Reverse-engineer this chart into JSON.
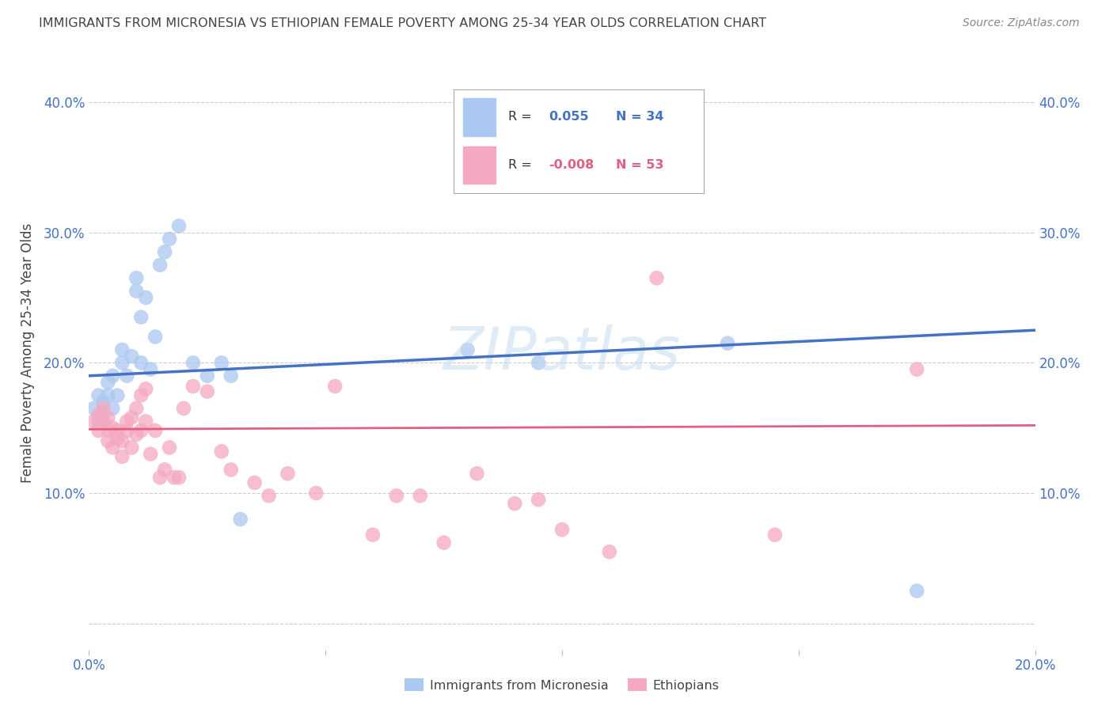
{
  "title": "IMMIGRANTS FROM MICRONESIA VS ETHIOPIAN FEMALE POVERTY AMONG 25-34 YEAR OLDS CORRELATION CHART",
  "source": "Source: ZipAtlas.com",
  "ylabel": "Female Poverty Among 25-34 Year Olds",
  "xlim": [
    0.0,
    0.2
  ],
  "ylim": [
    -0.02,
    0.435
  ],
  "yticks": [
    0.0,
    0.1,
    0.2,
    0.3,
    0.4
  ],
  "ytick_labels_left": [
    "",
    "10.0%",
    "20.0%",
    "30.0%",
    "40.0%"
  ],
  "ytick_labels_right": [
    "",
    "10.0%",
    "20.0%",
    "30.0%",
    "40.0%"
  ],
  "xticks": [
    0.0,
    0.05,
    0.1,
    0.15,
    0.2
  ],
  "xtick_labels": [
    "0.0%",
    "",
    "",
    "",
    "20.0%"
  ],
  "background_color": "#ffffff",
  "grid_color": "#cccccc",
  "series1_color": "#aac8f0",
  "series2_color": "#f5a8c0",
  "line1_color": "#4472c4",
  "line2_color": "#e06080",
  "title_color": "#444444",
  "axis_color": "#4472c4",
  "series1_name": "Immigrants from Micronesia",
  "series2_name": "Ethiopians",
  "legend_r1": "0.055",
  "legend_n1": "34",
  "legend_r2": "-0.008",
  "legend_n2": "53",
  "micronesia_x": [
    0.001,
    0.002,
    0.002,
    0.003,
    0.003,
    0.004,
    0.004,
    0.005,
    0.005,
    0.006,
    0.007,
    0.007,
    0.008,
    0.009,
    0.01,
    0.01,
    0.011,
    0.011,
    0.012,
    0.013,
    0.014,
    0.015,
    0.016,
    0.017,
    0.019,
    0.022,
    0.025,
    0.028,
    0.03,
    0.032,
    0.08,
    0.095,
    0.135,
    0.175
  ],
  "micronesia_y": [
    0.165,
    0.175,
    0.155,
    0.17,
    0.16,
    0.185,
    0.175,
    0.19,
    0.165,
    0.175,
    0.2,
    0.21,
    0.19,
    0.205,
    0.265,
    0.255,
    0.2,
    0.235,
    0.25,
    0.195,
    0.22,
    0.275,
    0.285,
    0.295,
    0.305,
    0.2,
    0.19,
    0.2,
    0.19,
    0.08,
    0.21,
    0.2,
    0.215,
    0.025
  ],
  "ethiopian_x": [
    0.001,
    0.002,
    0.002,
    0.003,
    0.003,
    0.004,
    0.004,
    0.004,
    0.005,
    0.005,
    0.006,
    0.006,
    0.007,
    0.007,
    0.008,
    0.008,
    0.009,
    0.009,
    0.01,
    0.01,
    0.011,
    0.011,
    0.012,
    0.012,
    0.013,
    0.014,
    0.015,
    0.016,
    0.017,
    0.018,
    0.019,
    0.02,
    0.022,
    0.025,
    0.028,
    0.03,
    0.035,
    0.038,
    0.042,
    0.048,
    0.052,
    0.06,
    0.065,
    0.07,
    0.075,
    0.082,
    0.09,
    0.095,
    0.1,
    0.11,
    0.12,
    0.145,
    0.175
  ],
  "ethiopian_y": [
    0.155,
    0.148,
    0.16,
    0.155,
    0.165,
    0.14,
    0.148,
    0.158,
    0.15,
    0.135,
    0.142,
    0.148,
    0.128,
    0.14,
    0.155,
    0.148,
    0.158,
    0.135,
    0.165,
    0.145,
    0.175,
    0.148,
    0.18,
    0.155,
    0.13,
    0.148,
    0.112,
    0.118,
    0.135,
    0.112,
    0.112,
    0.165,
    0.182,
    0.178,
    0.132,
    0.118,
    0.108,
    0.098,
    0.115,
    0.1,
    0.182,
    0.068,
    0.098,
    0.098,
    0.062,
    0.115,
    0.092,
    0.095,
    0.072,
    0.055,
    0.265,
    0.068,
    0.195
  ]
}
